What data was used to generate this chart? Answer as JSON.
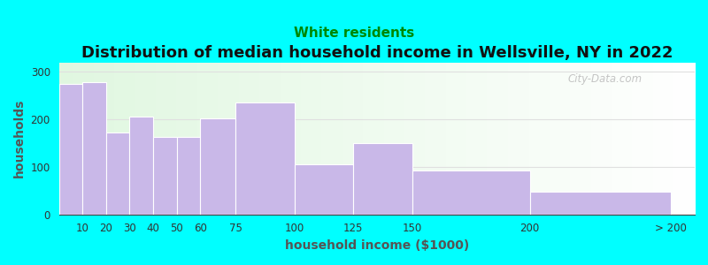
{
  "title": "Distribution of median household income in Wellsville, NY in 2022",
  "subtitle": "White residents",
  "xlabel": "household income ($1000)",
  "ylabel": "households",
  "background_color": "#00FFFF",
  "bar_color": "#C9B8E8",
  "bar_edgecolor": "#ffffff",
  "bin_edges": [
    0,
    10,
    20,
    30,
    40,
    50,
    60,
    75,
    100,
    125,
    150,
    200,
    260
  ],
  "values": [
    275,
    278,
    172,
    205,
    163,
    163,
    202,
    235,
    106,
    150,
    92,
    48
  ],
  "xtick_positions": [
    10,
    20,
    30,
    40,
    50,
    60,
    75,
    100,
    125,
    150,
    200,
    260
  ],
  "xtick_labels": [
    "10",
    "20",
    "30",
    "40",
    "50",
    "60",
    "75",
    "100",
    "125",
    "150",
    "200",
    "> 200"
  ],
  "xlim": [
    0,
    270
  ],
  "ylim": [
    0,
    320
  ],
  "yticks": [
    0,
    100,
    200,
    300
  ],
  "title_fontsize": 13,
  "subtitle_fontsize": 11,
  "subtitle_color": "#008800",
  "axis_label_fontsize": 10,
  "tick_fontsize": 8.5,
  "watermark_text": "City-Data.com",
  "grid_color": "#e0e0e0",
  "ylabel_color": "#555555",
  "xlabel_color": "#555555"
}
